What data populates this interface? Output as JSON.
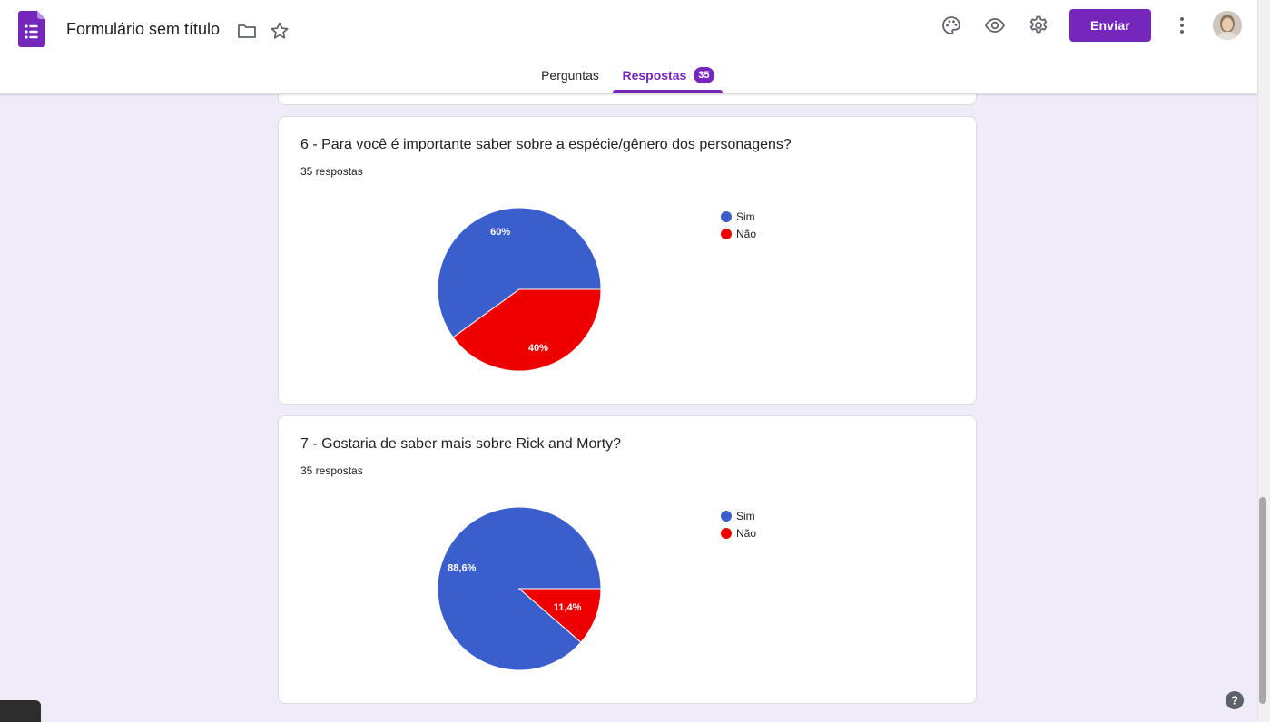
{
  "header": {
    "title": "Formulário sem título",
    "send_label": "Enviar",
    "icons": [
      "forms-logo-icon",
      "folder-icon",
      "star-icon",
      "palette-icon",
      "eye-icon",
      "gear-icon",
      "more-vert-icon",
      "avatar"
    ],
    "accent_color": "#7627bb"
  },
  "tabs": {
    "questions_label": "Perguntas",
    "responses_label": "Respostas",
    "responses_count": "35"
  },
  "questions": [
    {
      "title": "6 - Para você é importante saber sobre a espécie/gênero dos personagens?",
      "count_label": "35 respostas",
      "chart_data": {
        "type": "pie",
        "categories": [
          "Sim",
          "Não"
        ],
        "values": [
          60,
          40
        ],
        "labels": [
          "60%",
          "40%"
        ],
        "colors": [
          "#3a5fcd",
          "#ee0000"
        ],
        "legend_position": "right"
      }
    },
    {
      "title": "7 - Gostaria de saber mais sobre Rick and Morty?",
      "count_label": "35 respostas",
      "chart_data": {
        "type": "pie",
        "categories": [
          "Sim",
          "Não"
        ],
        "values": [
          88.6,
          11.4
        ],
        "labels": [
          "88,6%",
          "11,4%"
        ],
        "colors": [
          "#3a5fcd",
          "#ee0000"
        ],
        "legend_position": "right"
      }
    }
  ],
  "help_icon": "help-icon"
}
